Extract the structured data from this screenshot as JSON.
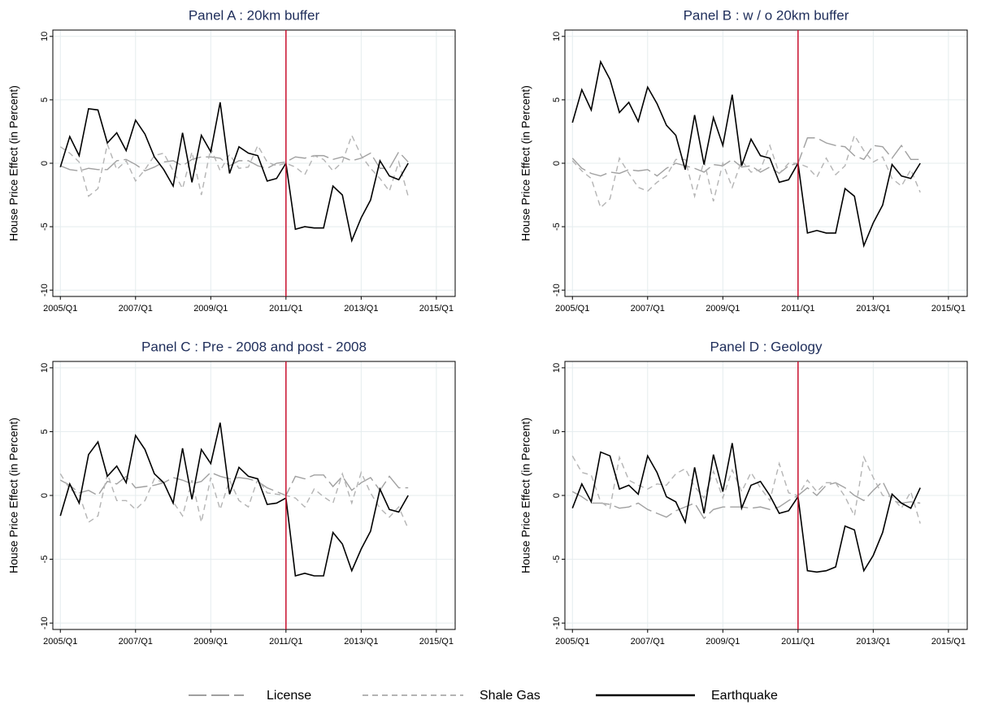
{
  "chart_data": [
    {
      "type": "line",
      "title": "Panel A : 20km buffer",
      "y_label": "House Price Effect (in Percent)",
      "x": [
        2005,
        2005.25,
        2005.5,
        2005.75,
        2006,
        2006.25,
        2006.5,
        2006.75,
        2007,
        2007.25,
        2007.5,
        2007.75,
        2008,
        2008.25,
        2008.5,
        2008.75,
        2009,
        2009.25,
        2009.5,
        2009.75,
        2010,
        2010.25,
        2010.5,
        2010.75,
        2011,
        2011.25,
        2011.5,
        2011.75,
        2012,
        2012.25,
        2012.5,
        2012.75,
        2013,
        2013.25,
        2013.5,
        2013.75,
        2014,
        2014.25
      ],
      "series": [
        {
          "name": "License",
          "color": "#a0a0a0",
          "dash": "long",
          "values": [
            -0.2,
            -0.5,
            -0.6,
            -0.4,
            -0.5,
            -0.5,
            0.2,
            0.3,
            -0.1,
            -0.6,
            -0.3,
            0.1,
            0.2,
            -0.2,
            0.3,
            0.5,
            0.5,
            0.4,
            -0.2,
            0.2,
            0.2,
            -0.2,
            -0.4,
            0.0,
            0.1,
            0.5,
            0.4,
            0.6,
            0.6,
            0.3,
            0.5,
            0.2,
            0.4,
            0.8,
            -0.4,
            -0.4,
            0.9,
            0.1
          ]
        },
        {
          "name": "Shale Gas",
          "color": "#b4b4b4",
          "dash": "short",
          "values": [
            1.3,
            0.8,
            0.1,
            -2.6,
            -2.0,
            1.5,
            -0.5,
            0.2,
            -1.4,
            -0.5,
            0.6,
            0.8,
            -0.6,
            -2.0,
            0.9,
            -2.5,
            1.2,
            -0.6,
            0.7,
            -0.4,
            -0.3,
            1.4,
            0.1,
            -0.2,
            0,
            -0.3,
            -0.9,
            0.6,
            0.3,
            -0.6,
            0.1,
            2.2,
            0.6,
            -0.4,
            -1.2,
            -2.2,
            0.1,
            -2.6
          ]
        },
        {
          "name": "Earthquake",
          "color": "#000000",
          "dash": "solid",
          "values": [
            -0.3,
            2.1,
            0.6,
            4.3,
            4.2,
            1.6,
            2.4,
            1.0,
            3.4,
            2.3,
            0.5,
            -0.5,
            -1.8,
            2.4,
            -1.5,
            2.2,
            0.9,
            4.8,
            -0.8,
            1.3,
            0.8,
            0.6,
            -1.4,
            -1.2,
            0,
            -5.2,
            -5.0,
            -5.1,
            -5.1,
            -1.8,
            -2.5,
            -6.1,
            -4.3,
            -2.9,
            0.2,
            -1.0,
            -1.3,
            0.0
          ]
        }
      ],
      "xlim": [
        2004.8,
        2015.5
      ],
      "ylim": [
        -10.5,
        10.5
      ],
      "xticks": [
        {
          "value": 2005,
          "label": "2005/Q1"
        },
        {
          "value": 2007,
          "label": "2007/Q1"
        },
        {
          "value": 2009,
          "label": "2009/Q1"
        },
        {
          "value": 2011,
          "label": "2011/Q1"
        },
        {
          "value": 2013,
          "label": "2013/Q1"
        },
        {
          "value": 2015,
          "label": "2015/Q1"
        }
      ],
      "yticks": [
        -10,
        -5,
        0,
        5,
        10
      ],
      "grid": true,
      "vline": 2011,
      "vline_color": "#c8102e"
    },
    {
      "type": "line",
      "title": "Panel B : w / o 20km buffer",
      "y_label": "House Price Effect (in Percent)",
      "x": [
        2005,
        2005.25,
        2005.5,
        2005.75,
        2006,
        2006.25,
        2006.5,
        2006.75,
        2007,
        2007.25,
        2007.5,
        2007.75,
        2008,
        2008.25,
        2008.5,
        2008.75,
        2009,
        2009.25,
        2009.5,
        2009.75,
        2010,
        2010.25,
        2010.5,
        2010.75,
        2011,
        2011.25,
        2011.5,
        2011.75,
        2012,
        2012.25,
        2012.5,
        2012.75,
        2013,
        2013.25,
        2013.5,
        2013.75,
        2014,
        2014.25
      ],
      "series": [
        {
          "name": "License",
          "color": "#a0a0a0",
          "dash": "long",
          "values": [
            0.4,
            -0.4,
            -0.8,
            -1.0,
            -0.7,
            -0.8,
            -0.5,
            -0.6,
            -0.5,
            -1.0,
            -0.4,
            0.0,
            -0.2,
            -0.4,
            -0.7,
            -0.1,
            -0.2,
            0.3,
            -0.3,
            -0.2,
            -0.7,
            -0.3,
            -0.8,
            -0.2,
            0,
            2.0,
            2.0,
            1.6,
            1.4,
            1.3,
            0.6,
            0.3,
            1.4,
            1.3,
            0.4,
            1.4,
            0.3,
            0.3
          ]
        },
        {
          "name": "Shale Gas",
          "color": "#b4b4b4",
          "dash": "short",
          "values": [
            0.2,
            -0.6,
            -1.2,
            -3.5,
            -2.8,
            0.4,
            -0.8,
            -1.9,
            -2.2,
            -1.5,
            -1.0,
            0.3,
            0.3,
            -2.6,
            0.2,
            -3.0,
            0.0,
            -1.9,
            0.2,
            -0.7,
            -0.5,
            1.4,
            -0.8,
            0.0,
            0,
            -0.3,
            -1.1,
            0.4,
            -0.9,
            -0.2,
            2.2,
            1.0,
            0.1,
            0.5,
            -1.2,
            -1.8,
            -0.5,
            -2.3
          ]
        },
        {
          "name": "Earthquake",
          "color": "#000000",
          "dash": "solid",
          "values": [
            3.2,
            5.8,
            4.2,
            8.0,
            6.6,
            4.0,
            4.8,
            3.3,
            6.0,
            4.7,
            3.0,
            2.2,
            -0.5,
            3.8,
            -0.1,
            3.6,
            1.4,
            5.4,
            -0.2,
            1.9,
            0.6,
            0.4,
            -1.5,
            -1.3,
            0,
            -5.5,
            -5.3,
            -5.5,
            -5.5,
            -2.0,
            -2.6,
            -6.5,
            -4.7,
            -3.3,
            -0.1,
            -1.0,
            -1.2,
            0.0
          ]
        }
      ],
      "xlim": [
        2004.8,
        2015.5
      ],
      "ylim": [
        -10.5,
        10.5
      ],
      "xticks": [
        {
          "value": 2005,
          "label": "2005/Q1"
        },
        {
          "value": 2007,
          "label": "2007/Q1"
        },
        {
          "value": 2009,
          "label": "2009/Q1"
        },
        {
          "value": 2011,
          "label": "2011/Q1"
        },
        {
          "value": 2013,
          "label": "2013/Q1"
        },
        {
          "value": 2015,
          "label": "2015/Q1"
        }
      ],
      "yticks": [
        -10,
        -5,
        0,
        5,
        10
      ],
      "grid": true,
      "vline": 2011,
      "vline_color": "#c8102e"
    },
    {
      "type": "line",
      "title": "Panel C : Pre - 2008 and post - 2008",
      "y_label": "House Price Effect (in Percent)",
      "x": [
        2005,
        2005.25,
        2005.5,
        2005.75,
        2006,
        2006.25,
        2006.5,
        2006.75,
        2007,
        2007.25,
        2007.5,
        2007.75,
        2008,
        2008.25,
        2008.5,
        2008.75,
        2009,
        2009.25,
        2009.5,
        2009.75,
        2010,
        2010.25,
        2010.5,
        2010.75,
        2011,
        2011.25,
        2011.5,
        2011.75,
        2012,
        2012.25,
        2012.5,
        2012.75,
        2013,
        2013.25,
        2013.5,
        2013.75,
        2014,
        2014.25
      ],
      "series": [
        {
          "name": "License",
          "color": "#a0a0a0",
          "dash": "long",
          "values": [
            1.2,
            0.8,
            0.2,
            0.4,
            0.0,
            1.1,
            0.9,
            1.5,
            0.6,
            0.7,
            0.8,
            1.0,
            1.4,
            1.2,
            0.9,
            1.1,
            1.8,
            1.5,
            1.3,
            1.4,
            1.3,
            1.1,
            0.6,
            0.3,
            0,
            1.5,
            1.3,
            1.6,
            1.6,
            0.7,
            1.5,
            0.4,
            1.0,
            1.4,
            0.4,
            1.5,
            0.6,
            0.6
          ]
        },
        {
          "name": "Shale Gas",
          "color": "#b4b4b4",
          "dash": "short",
          "values": [
            1.7,
            0.5,
            0.1,
            -2.1,
            -1.6,
            1.7,
            -0.4,
            -0.4,
            -1.1,
            -0.4,
            1.3,
            1.0,
            -0.5,
            -1.6,
            1.2,
            -2.1,
            1.4,
            -1.1,
            1.2,
            -0.4,
            -0.9,
            1.3,
            0.2,
            0.1,
            0,
            -0.2,
            -0.9,
            0.5,
            -0.1,
            -0.6,
            1.7,
            -0.6,
            1.8,
            0.2,
            -1.0,
            -1.7,
            -0.9,
            -2.6
          ]
        },
        {
          "name": "Earthquake",
          "color": "#000000",
          "dash": "solid",
          "values": [
            -1.6,
            0.9,
            -0.6,
            3.2,
            4.2,
            1.5,
            2.3,
            1.0,
            4.7,
            3.6,
            1.7,
            1.0,
            -0.6,
            3.7,
            -0.3,
            3.6,
            2.5,
            5.7,
            0.1,
            2.2,
            1.5,
            1.3,
            -0.7,
            -0.6,
            -0.2,
            -6.3,
            -6.1,
            -6.3,
            -6.3,
            -2.9,
            -3.8,
            -5.9,
            -4.2,
            -2.8,
            0.5,
            -1.1,
            -1.3,
            0.0
          ]
        }
      ],
      "xlim": [
        2004.8,
        2015.5
      ],
      "ylim": [
        -10.5,
        10.5
      ],
      "xticks": [
        {
          "value": 2005,
          "label": "2005/Q1"
        },
        {
          "value": 2007,
          "label": "2007/Q1"
        },
        {
          "value": 2009,
          "label": "2009/Q1"
        },
        {
          "value": 2011,
          "label": "2011/Q1"
        },
        {
          "value": 2013,
          "label": "2013/Q1"
        },
        {
          "value": 2015,
          "label": "2015/Q1"
        }
      ],
      "yticks": [
        -10,
        -5,
        0,
        5,
        10
      ],
      "grid": true,
      "vline": 2011,
      "vline_color": "#c8102e"
    },
    {
      "type": "line",
      "title": "Panel D : Geology",
      "y_label": "House Price Effect (in Percent)",
      "x": [
        2005,
        2005.25,
        2005.5,
        2005.75,
        2006,
        2006.25,
        2006.5,
        2006.75,
        2007,
        2007.25,
        2007.5,
        2007.75,
        2008,
        2008.25,
        2008.5,
        2008.75,
        2009,
        2009.25,
        2009.5,
        2009.75,
        2010,
        2010.25,
        2010.5,
        2010.75,
        2011,
        2011.25,
        2011.5,
        2011.75,
        2012,
        2012.25,
        2012.5,
        2012.75,
        2013,
        2013.25,
        2013.5,
        2013.75,
        2014,
        2014.25
      ],
      "series": [
        {
          "name": "License",
          "color": "#a0a0a0",
          "dash": "long",
          "values": [
            0.3,
            -0.1,
            -0.6,
            -0.6,
            -0.7,
            -1.0,
            -0.9,
            -0.6,
            -1.1,
            -1.4,
            -1.7,
            -1.2,
            -0.9,
            -0.6,
            -1.8,
            -1.1,
            -0.9,
            -0.9,
            -0.9,
            -1.0,
            -0.9,
            -1.1,
            -0.9,
            -0.4,
            0,
            0.6,
            0.0,
            0.8,
            1.0,
            0.6,
            0.0,
            -0.4,
            0.4,
            1.1,
            -0.4,
            -0.6,
            -0.5,
            -0.6
          ]
        },
        {
          "name": "Shale Gas",
          "color": "#b4b4b4",
          "dash": "short",
          "values": [
            3.1,
            1.8,
            1.6,
            -0.5,
            -1.0,
            3.0,
            1.2,
            0.8,
            0.5,
            0.9,
            0.8,
            1.7,
            2.1,
            0.7,
            -0.2,
            1.9,
            -0.2,
            2.0,
            0.3,
            1.8,
            0.6,
            -0.4,
            2.5,
            0.2,
            0,
            1.2,
            0.3,
            1.0,
            1.0,
            -0.1,
            -1.6,
            3.0,
            1.4,
            0.0,
            -0.1,
            -1.0,
            0.3,
            -2.2
          ]
        },
        {
          "name": "Earthquake",
          "color": "#000000",
          "dash": "solid",
          "values": [
            -1.0,
            0.9,
            -0.5,
            3.4,
            3.1,
            0.5,
            0.8,
            0.1,
            3.1,
            1.8,
            -0.1,
            -0.5,
            -2.1,
            2.2,
            -1.4,
            3.2,
            0.3,
            4.1,
            -1.0,
            0.8,
            1.1,
            0.0,
            -1.4,
            -1.2,
            -0.1,
            -5.9,
            -6.0,
            -5.9,
            -5.6,
            -2.4,
            -2.7,
            -5.9,
            -4.7,
            -2.9,
            0.1,
            -0.6,
            -1.0,
            0.6
          ]
        }
      ],
      "xlim": [
        2004.8,
        2015.5
      ],
      "ylim": [
        -10.5,
        10.5
      ],
      "xticks": [
        {
          "value": 2005,
          "label": "2005/Q1"
        },
        {
          "value": 2007,
          "label": "2007/Q1"
        },
        {
          "value": 2009,
          "label": "2009/Q1"
        },
        {
          "value": 2011,
          "label": "2011/Q1"
        },
        {
          "value": 2013,
          "label": "2013/Q1"
        },
        {
          "value": 2015,
          "label": "2015/Q1"
        }
      ],
      "yticks": [
        -10,
        -5,
        0,
        5,
        10
      ],
      "grid": true,
      "vline": 2011,
      "vline_color": "#c8102e"
    }
  ]
}
